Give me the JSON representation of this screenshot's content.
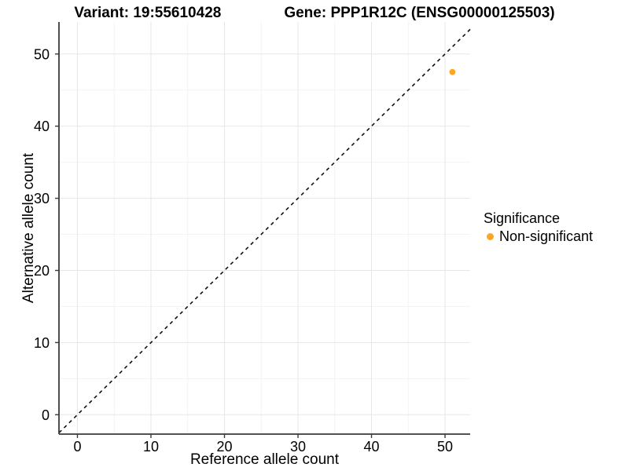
{
  "title": {
    "variant_part": "Variant: 19:55610428",
    "gene_part": "Gene: PPP1R12C (ENSG00000125503)"
  },
  "legend": {
    "title": "Significance",
    "items": [
      {
        "label": "Non-significant",
        "color": "#FFA520"
      }
    ]
  },
  "chart_data": {
    "type": "scatter",
    "title": "Variant: 19:55610428   Gene: PPP1R12C (ENSG00000125503)",
    "xlabel": "Reference allele count",
    "ylabel": "Alternative allele count",
    "xlim": [
      -2.51,
      53.42
    ],
    "ylim": [
      -2.69,
      54.44
    ],
    "xticks": [
      0,
      10,
      20,
      30,
      40,
      50
    ],
    "yticks": [
      0,
      10,
      20,
      30,
      40,
      50
    ],
    "x_minor": [
      5,
      15,
      25,
      35,
      45
    ],
    "y_minor": [
      5,
      15,
      25,
      35,
      45
    ],
    "grid": "major+minor",
    "legend_position": "right",
    "identity_line": {
      "slope": 1,
      "intercept": 0,
      "style": "dashed",
      "color": "#111111"
    },
    "series": [
      {
        "name": "Non-significant",
        "color": "#FFA520",
        "points": [
          {
            "x": 51,
            "y": 47.5
          }
        ]
      }
    ]
  },
  "colors": {
    "point_orange": "#FFA520",
    "grid_major": "#E7E7E7",
    "grid_minor": "#F3F3F3",
    "axis_line": "#3A3A3A",
    "dashed_line": "#111111",
    "background": "#FFFFFF"
  }
}
